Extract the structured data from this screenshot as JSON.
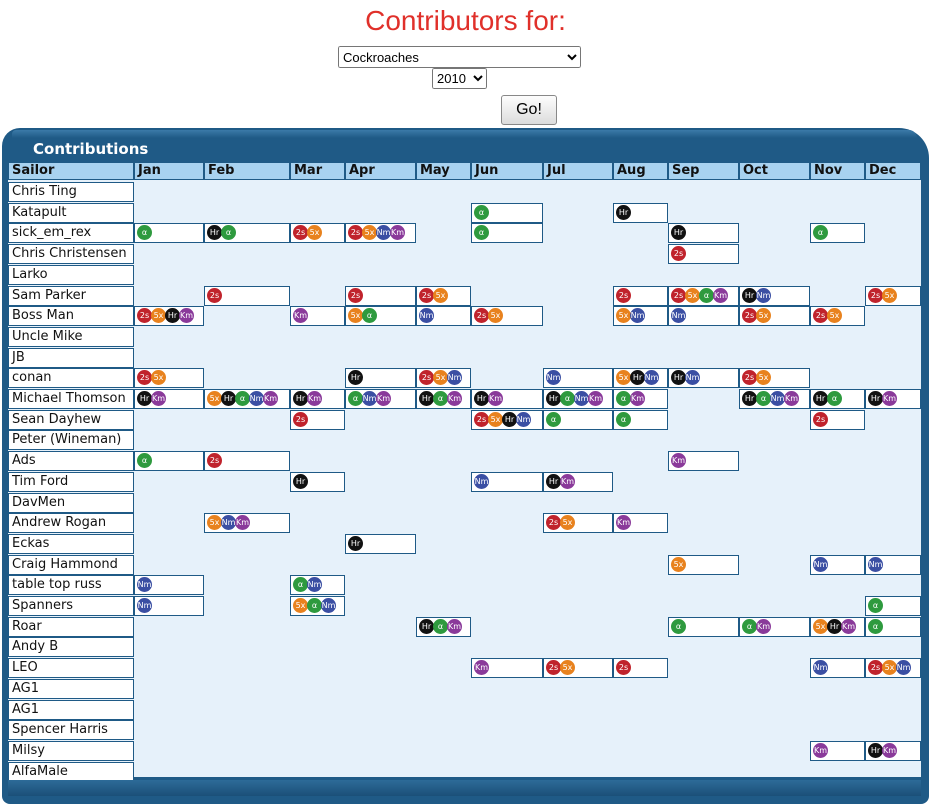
{
  "page_title": "Contributors for:",
  "group_select": {
    "value": "Cockroaches"
  },
  "year_select": {
    "value": "2010"
  },
  "go_label": "Go!",
  "panel_title": "Contributions",
  "header": {
    "sailor": "Sailor",
    "months": [
      "Jan",
      "Feb",
      "Mar",
      "Apr",
      "May",
      "Jun",
      "Jul",
      "Aug",
      "Sep",
      "Oct",
      "Nov",
      "Dec"
    ]
  },
  "badge_colors": {
    "2s": "#c0232c",
    "5x": "#e8821e",
    "Hr": "#111111",
    "α": "#2e9a3e",
    "Nm": "#3b4fa3",
    "Km": "#8a3a9a"
  },
  "rows": [
    {
      "name": "Chris Ting",
      "cells": {}
    },
    {
      "name": "Katapult",
      "cells": {
        "5": [
          "α"
        ],
        "7": [
          "Hr"
        ]
      }
    },
    {
      "name": "sick_em_rex",
      "cells": {
        "0": [
          "α"
        ],
        "1": [
          "Hr",
          "α"
        ],
        "2": [
          "2s",
          "5x"
        ],
        "3": [
          "2s",
          "5x",
          "Nm",
          "Km"
        ],
        "5": [
          "α"
        ],
        "8": [
          "Hr"
        ],
        "10": [
          "α"
        ]
      }
    },
    {
      "name": "Chris Christensen",
      "cells": {
        "8": [
          "2s"
        ]
      }
    },
    {
      "name": "Larko",
      "cells": {}
    },
    {
      "name": "Sam Parker",
      "cells": {
        "1": [
          "2s"
        ],
        "3": [
          "2s"
        ],
        "4": [
          "2s",
          "5x"
        ],
        "7": [
          "2s"
        ],
        "8": [
          "2s",
          "5x",
          "α",
          "Km"
        ],
        "9": [
          "Hr",
          "Nm"
        ],
        "11": [
          "2s",
          "5x"
        ]
      }
    },
    {
      "name": "Boss Man",
      "cells": {
        "0": [
          "2s",
          "5x",
          "Hr",
          "Km"
        ],
        "2": [
          "Km"
        ],
        "3": [
          "5x",
          "α"
        ],
        "4": [
          "Nm"
        ],
        "5": [
          "2s",
          "5x"
        ],
        "7": [
          "5x",
          "Nm"
        ],
        "8": [
          "Nm"
        ],
        "9": [
          "2s",
          "5x"
        ],
        "10": [
          "2s",
          "5x"
        ]
      }
    },
    {
      "name": "Uncle Mike",
      "cells": {}
    },
    {
      "name": "JB",
      "cells": {}
    },
    {
      "name": "conan",
      "cells": {
        "0": [
          "2s",
          "5x"
        ],
        "3": [
          "Hr"
        ],
        "4": [
          "2s",
          "5x",
          "Nm"
        ],
        "6": [
          "Nm"
        ],
        "7": [
          "5x",
          "Hr",
          "Nm"
        ],
        "8": [
          "Hr",
          "Nm"
        ],
        "9": [
          "2s",
          "5x"
        ]
      }
    },
    {
      "name": "Michael Thomson",
      "cells": {
        "0": [
          "Hr",
          "Km"
        ],
        "1": [
          "5x",
          "Hr",
          "α",
          "Nm",
          "Km"
        ],
        "2": [
          "Hr",
          "Km"
        ],
        "3": [
          "α",
          "Nm",
          "Km"
        ],
        "4": [
          "Hr",
          "α",
          "Km"
        ],
        "5": [
          "Hr",
          "Km"
        ],
        "6": [
          "Hr",
          "α",
          "Nm",
          "Km"
        ],
        "7": [
          "α",
          "Km"
        ],
        "9": [
          "Hr",
          "α",
          "Nm",
          "Km"
        ],
        "10": [
          "Hr",
          "α"
        ],
        "11": [
          "Hr",
          "Km"
        ]
      }
    },
    {
      "name": "Sean Dayhew",
      "cells": {
        "2": [
          "2s"
        ],
        "5": [
          "2s",
          "5x",
          "Hr",
          "Nm"
        ],
        "6": [
          "α"
        ],
        "7": [
          "α"
        ],
        "10": [
          "2s"
        ]
      }
    },
    {
      "name": "Peter (Wineman)",
      "cells": {}
    },
    {
      "name": "Ads",
      "cells": {
        "0": [
          "α"
        ],
        "1": [
          "2s"
        ],
        "8": [
          "Km"
        ]
      }
    },
    {
      "name": "Tim Ford",
      "cells": {
        "2": [
          "Hr"
        ],
        "5": [
          "Nm"
        ],
        "6": [
          "Hr",
          "Km"
        ]
      }
    },
    {
      "name": "DavMen",
      "cells": {}
    },
    {
      "name": "Andrew Rogan",
      "cells": {
        "1": [
          "5x",
          "Nm",
          "Km"
        ],
        "6": [
          "2s",
          "5x"
        ],
        "7": [
          "Km"
        ]
      }
    },
    {
      "name": "Eckas",
      "cells": {
        "3": [
          "Hr"
        ]
      }
    },
    {
      "name": "Craig Hammond",
      "cells": {
        "8": [
          "5x"
        ],
        "10": [
          "Nm"
        ],
        "11": [
          "Nm"
        ]
      }
    },
    {
      "name": "table top russ",
      "cells": {
        "0": [
          "Nm"
        ],
        "2": [
          "α",
          "Nm"
        ]
      }
    },
    {
      "name": "Spanners",
      "cells": {
        "0": [
          "Nm"
        ],
        "2": [
          "5x",
          "α",
          "Nm"
        ],
        "11": [
          "α"
        ]
      }
    },
    {
      "name": "Roar",
      "cells": {
        "4": [
          "Hr",
          "α",
          "Km"
        ],
        "8": [
          "α"
        ],
        "9": [
          "α",
          "Km"
        ],
        "10": [
          "5x",
          "Hr",
          "Km"
        ],
        "11": [
          "α"
        ]
      }
    },
    {
      "name": "Andy B",
      "cells": {}
    },
    {
      "name": "LEO",
      "cells": {
        "5": [
          "Km"
        ],
        "6": [
          "2s",
          "5x"
        ],
        "7": [
          "2s"
        ],
        "10": [
          "Nm"
        ],
        "11": [
          "2s",
          "5x",
          "Nm"
        ]
      }
    },
    {
      "name": "AG1",
      "cells": {}
    },
    {
      "name": "AG1",
      "cells": {}
    },
    {
      "name": "Spencer Harris",
      "cells": {}
    },
    {
      "name": "Milsy",
      "cells": {
        "10": [
          "Km"
        ],
        "11": [
          "Hr",
          "Km"
        ]
      }
    },
    {
      "name": "AlfaMale",
      "cells": {}
    }
  ]
}
